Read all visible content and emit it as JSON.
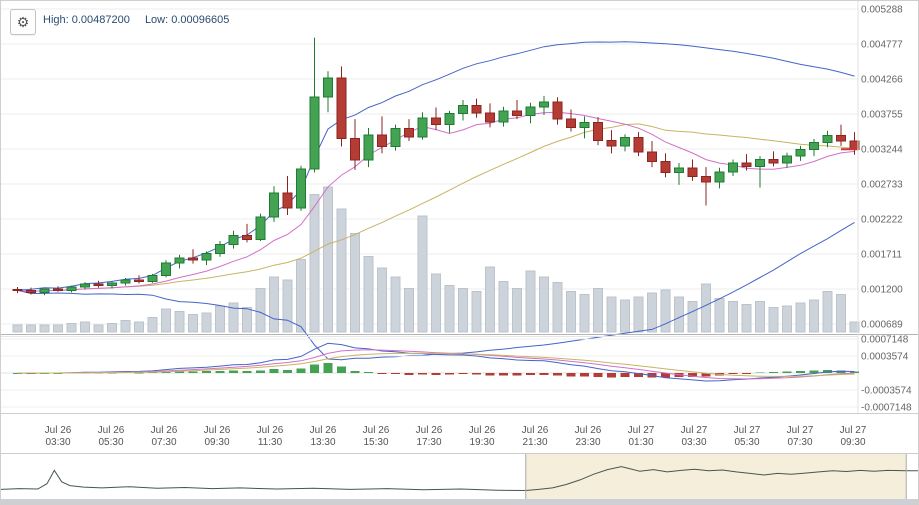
{
  "icons": {
    "settings": "⚙"
  },
  "header": {
    "high_label": "High:",
    "high_value": "0.00487200",
    "low_label": "Low:",
    "low_value": "0.00096605"
  },
  "chart_data": {
    "type": "candlestick",
    "title": "",
    "interval_minutes": 30,
    "start": "Jul 26 02:00",
    "candle_format": [
      "open",
      "high",
      "low",
      "close",
      "volume_rel"
    ],
    "price_axis": {
      "top_value": 0.005288,
      "step_value": 0.000511,
      "labels": [
        "0.005288",
        "0.004777",
        "0.004266",
        "0.003755",
        "0.003244",
        "0.002733",
        "0.002222",
        "0.001711",
        "0.001200",
        "0.000689"
      ]
    },
    "macd_axis": {
      "max": 0.0007148,
      "labels": [
        "0.0007148",
        "0.0003574",
        "-0.0003574",
        "-0.0007148"
      ],
      "values": [
        0.0007148,
        0.0003574,
        -0.0003574,
        -0.0007148
      ]
    },
    "x_axis": [
      {
        "date": "Jul 26",
        "time": "03:30"
      },
      {
        "date": "Jul 26",
        "time": "05:30"
      },
      {
        "date": "Jul 26",
        "time": "07:30"
      },
      {
        "date": "Jul 26",
        "time": "09:30"
      },
      {
        "date": "Jul 26",
        "time": "11:30"
      },
      {
        "date": "Jul 26",
        "time": "13:30"
      },
      {
        "date": "Jul 26",
        "time": "15:30"
      },
      {
        "date": "Jul 26",
        "time": "17:30"
      },
      {
        "date": "Jul 26",
        "time": "19:30"
      },
      {
        "date": "Jul 26",
        "time": "21:30"
      },
      {
        "date": "Jul 26",
        "time": "23:30"
      },
      {
        "date": "Jul 27",
        "time": "01:30"
      },
      {
        "date": "Jul 27",
        "time": "03:30"
      },
      {
        "date": "Jul 27",
        "time": "05:30"
      },
      {
        "date": "Jul 27",
        "time": "07:30"
      },
      {
        "date": "Jul 27",
        "time": "09:30"
      }
    ],
    "candles": [
      [
        0.00119,
        0.00123,
        0.00114,
        0.00118,
        0.05
      ],
      [
        0.00118,
        0.00122,
        0.00112,
        0.00115,
        0.05
      ],
      [
        0.00115,
        0.00121,
        0.00111,
        0.0012,
        0.05
      ],
      [
        0.0012,
        0.00124,
        0.00116,
        0.00118,
        0.05
      ],
      [
        0.00118,
        0.00125,
        0.00115,
        0.00123,
        0.06
      ],
      [
        0.00123,
        0.0013,
        0.00119,
        0.00127,
        0.07
      ],
      [
        0.00127,
        0.00132,
        0.00122,
        0.00125,
        0.05
      ],
      [
        0.00125,
        0.00131,
        0.00121,
        0.00129,
        0.06
      ],
      [
        0.00129,
        0.00136,
        0.00125,
        0.00133,
        0.08
      ],
      [
        0.00133,
        0.0014,
        0.00128,
        0.00131,
        0.07
      ],
      [
        0.00131,
        0.00142,
        0.00129,
        0.0014,
        0.1
      ],
      [
        0.0014,
        0.00162,
        0.00137,
        0.00158,
        0.16
      ],
      [
        0.00158,
        0.0017,
        0.0015,
        0.00165,
        0.14
      ],
      [
        0.00165,
        0.00178,
        0.00157,
        0.00162,
        0.12
      ],
      [
        0.00162,
        0.00175,
        0.00155,
        0.00172,
        0.13
      ],
      [
        0.00172,
        0.0019,
        0.00167,
        0.00185,
        0.18
      ],
      [
        0.00185,
        0.00205,
        0.00179,
        0.00198,
        0.2
      ],
      [
        0.00198,
        0.00215,
        0.00188,
        0.00192,
        0.17
      ],
      [
        0.00192,
        0.0023,
        0.0019,
        0.00225,
        0.3
      ],
      [
        0.00225,
        0.0027,
        0.00218,
        0.0026,
        0.38
      ],
      [
        0.0026,
        0.00285,
        0.00228,
        0.00238,
        0.36
      ],
      [
        0.00238,
        0.003,
        0.00234,
        0.00295,
        0.5
      ],
      [
        0.00295,
        0.00487,
        0.0029,
        0.004,
        0.95
      ],
      [
        0.004,
        0.00438,
        0.00378,
        0.00428,
        1.0
      ],
      [
        0.00428,
        0.00445,
        0.00328,
        0.0034,
        0.85
      ],
      [
        0.0034,
        0.00368,
        0.00294,
        0.00308,
        0.68
      ],
      [
        0.00308,
        0.00355,
        0.00298,
        0.00345,
        0.52
      ],
      [
        0.00345,
        0.00372,
        0.00318,
        0.00328,
        0.44
      ],
      [
        0.00328,
        0.0036,
        0.00322,
        0.00354,
        0.38
      ],
      [
        0.00354,
        0.00368,
        0.00336,
        0.00342,
        0.3
      ],
      [
        0.00342,
        0.00378,
        0.00338,
        0.0037,
        0.8
      ],
      [
        0.0037,
        0.00385,
        0.00352,
        0.0036,
        0.4
      ],
      [
        0.0036,
        0.0038,
        0.00348,
        0.00376,
        0.32
      ],
      [
        0.00376,
        0.00396,
        0.00366,
        0.00388,
        0.3
      ],
      [
        0.00388,
        0.00398,
        0.0037,
        0.00377,
        0.28
      ],
      [
        0.00377,
        0.00391,
        0.00356,
        0.00364,
        0.45
      ],
      [
        0.00364,
        0.00386,
        0.00357,
        0.0038,
        0.35
      ],
      [
        0.0038,
        0.00396,
        0.00368,
        0.00373,
        0.3
      ],
      [
        0.00373,
        0.00392,
        0.00362,
        0.00386,
        0.42
      ],
      [
        0.00386,
        0.00402,
        0.00374,
        0.00393,
        0.38
      ],
      [
        0.00393,
        0.004,
        0.0036,
        0.00368,
        0.34
      ],
      [
        0.00368,
        0.00382,
        0.0035,
        0.00356,
        0.28
      ],
      [
        0.00356,
        0.00372,
        0.0034,
        0.00363,
        0.26
      ],
      [
        0.00363,
        0.00371,
        0.0033,
        0.00337,
        0.3
      ],
      [
        0.00337,
        0.00352,
        0.00318,
        0.00329,
        0.24
      ],
      [
        0.00329,
        0.00346,
        0.00321,
        0.00341,
        0.22
      ],
      [
        0.00341,
        0.00349,
        0.00314,
        0.0032,
        0.24
      ],
      [
        0.0032,
        0.00336,
        0.00298,
        0.00306,
        0.27
      ],
      [
        0.00306,
        0.00318,
        0.00283,
        0.0029,
        0.29
      ],
      [
        0.0029,
        0.00304,
        0.00272,
        0.00297,
        0.24
      ],
      [
        0.00297,
        0.00309,
        0.00278,
        0.00284,
        0.21
      ],
      [
        0.00284,
        0.00298,
        0.00242,
        0.00276,
        0.33
      ],
      [
        0.00276,
        0.00297,
        0.00267,
        0.00291,
        0.23
      ],
      [
        0.00291,
        0.00309,
        0.00285,
        0.00304,
        0.21
      ],
      [
        0.00304,
        0.00317,
        0.00293,
        0.00299,
        0.19
      ],
      [
        0.00299,
        0.00314,
        0.00268,
        0.00309,
        0.21
      ],
      [
        0.00309,
        0.00321,
        0.00299,
        0.00304,
        0.17
      ],
      [
        0.00304,
        0.00319,
        0.00297,
        0.00314,
        0.18
      ],
      [
        0.00314,
        0.00329,
        0.00307,
        0.00324,
        0.2
      ],
      [
        0.00324,
        0.00339,
        0.00314,
        0.00334,
        0.22
      ],
      [
        0.00334,
        0.00351,
        0.00327,
        0.00344,
        0.28
      ],
      [
        0.00344,
        0.0036,
        0.00329,
        0.00336,
        0.26
      ],
      [
        0.00336,
        0.00349,
        0.00316,
        0.00324,
        0.07
      ]
    ],
    "indicators": {
      "bollinger": {
        "period": 48,
        "stddev": 2
      },
      "sma_fast": {
        "period": 9
      },
      "sma_slow": {
        "period": 25
      },
      "macd": {
        "fast": 8,
        "slow": 17,
        "signal": 6
      }
    },
    "navigator": {
      "selection": [
        0.571,
        0.985
      ],
      "points": [
        [
          0,
          0.2
        ],
        [
          0.02,
          0.22
        ],
        [
          0.04,
          0.21
        ],
        [
          0.05,
          0.35
        ],
        [
          0.058,
          0.7
        ],
        [
          0.066,
          0.4
        ],
        [
          0.075,
          0.3
        ],
        [
          0.09,
          0.26
        ],
        [
          0.11,
          0.24
        ],
        [
          0.14,
          0.27
        ],
        [
          0.17,
          0.23
        ],
        [
          0.2,
          0.25
        ],
        [
          0.23,
          0.22
        ],
        [
          0.26,
          0.24
        ],
        [
          0.3,
          0.21
        ],
        [
          0.34,
          0.23
        ],
        [
          0.38,
          0.2
        ],
        [
          0.42,
          0.22
        ],
        [
          0.46,
          0.19
        ],
        [
          0.5,
          0.21
        ],
        [
          0.54,
          0.18
        ],
        [
          0.571,
          0.17
        ],
        [
          0.585,
          0.2
        ],
        [
          0.6,
          0.24
        ],
        [
          0.615,
          0.33
        ],
        [
          0.63,
          0.45
        ],
        [
          0.645,
          0.6
        ],
        [
          0.66,
          0.72
        ],
        [
          0.675,
          0.8
        ],
        [
          0.685,
          0.74
        ],
        [
          0.695,
          0.68
        ],
        [
          0.71,
          0.72
        ],
        [
          0.725,
          0.66
        ],
        [
          0.74,
          0.7
        ],
        [
          0.755,
          0.73
        ],
        [
          0.77,
          0.69
        ],
        [
          0.785,
          0.71
        ],
        [
          0.8,
          0.66
        ],
        [
          0.815,
          0.62
        ],
        [
          0.83,
          0.58
        ],
        [
          0.845,
          0.62
        ],
        [
          0.86,
          0.6
        ],
        [
          0.875,
          0.63
        ],
        [
          0.89,
          0.66
        ],
        [
          0.905,
          0.69
        ],
        [
          0.92,
          0.67
        ],
        [
          0.935,
          0.7
        ],
        [
          0.95,
          0.68
        ],
        [
          0.965,
          0.7
        ],
        [
          0.985,
          0.69
        ],
        [
          1,
          0.69
        ]
      ]
    },
    "colors": {
      "up": "#44a253",
      "up_border": "#1f7a33",
      "down": "#b43c35",
      "down_border": "#8a2620",
      "volume": "#ccd3da",
      "volume_border": "#bcc3cb",
      "band": "#4664c8",
      "sma_fast": "#d171c9",
      "sma_slow": "#c8b464",
      "grid": "#ececec",
      "axis_text": "#666666",
      "nav_line": "#44584e",
      "nav_selected": "#f5eedb",
      "last_price": "#cc3333",
      "header_text": "#2a4b70"
    }
  }
}
